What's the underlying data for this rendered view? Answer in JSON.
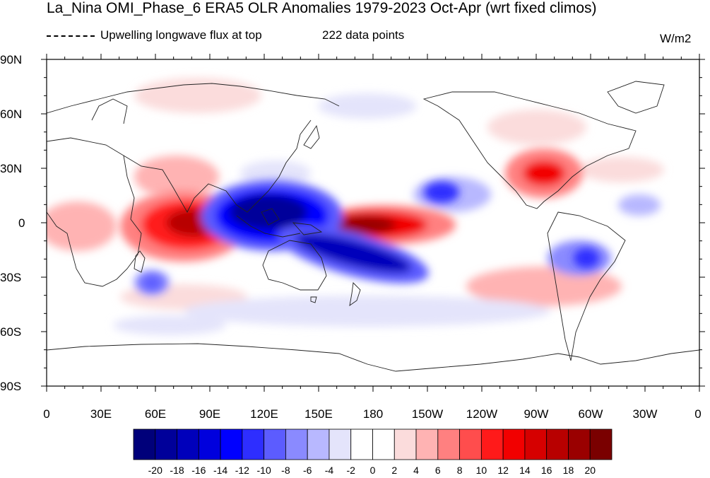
{
  "title": "La_Nina OMI_Phase_6 ERA5 OLR Anomalies 1979-2023 Oct-Apr (wrt fixed climos)",
  "legend_text": "Upwelling longwave flux at top",
  "points_text": "222 data points",
  "units": "W/m2",
  "lat_labels": [
    "90N",
    "60N",
    "30N",
    "0",
    "30S",
    "60S",
    "90S"
  ],
  "lon_labels": [
    "0",
    "30E",
    "60E",
    "90E",
    "120E",
    "150E",
    "180",
    "150W",
    "120W",
    "90W",
    "60W",
    "30W",
    "0"
  ],
  "colorbar": {
    "labels": [
      "-20",
      "-18",
      "-16",
      "-14",
      "-12",
      "-10",
      "-8",
      "-6",
      "-4",
      "-2",
      "0",
      "2",
      "4",
      "6",
      "8",
      "10",
      "12",
      "14",
      "16",
      "18",
      "20"
    ],
    "colors": [
      "#00007a",
      "#00009a",
      "#0000bb",
      "#0000dd",
      "#0000ff",
      "#2e2eff",
      "#5c5cff",
      "#8a8aff",
      "#b8b8ff",
      "#e4e4fb",
      "#ffffff",
      "#ffffff",
      "#fbdcdc",
      "#ffb3b3",
      "#ff8080",
      "#ff4d4d",
      "#ff1a1a",
      "#f20000",
      "#d60000",
      "#b80000",
      "#9a0000",
      "#7a0000"
    ]
  },
  "chart_data": {
    "type": "heatmap",
    "variable": "OLR anomaly",
    "units": "W/m2",
    "x_range": [
      0,
      360
    ],
    "y_range": [
      -90,
      90
    ],
    "levels": [
      -20,
      -18,
      -16,
      -14,
      -12,
      -10,
      -8,
      -6,
      -4,
      -2,
      0,
      2,
      4,
      6,
      8,
      10,
      12,
      14,
      16,
      18,
      20
    ],
    "anomaly_centers": [
      {
        "lon": 80,
        "lat": 0,
        "value": 22
      },
      {
        "lon": 65,
        "lat": -8,
        "value": 18
      },
      {
        "lon": 90,
        "lat": 20,
        "value": 10
      },
      {
        "lon": 175,
        "lat": -2,
        "value": 24
      },
      {
        "lon": 200,
        "lat": 0,
        "value": 16
      },
      {
        "lon": 260,
        "lat": 27,
        "value": 12
      },
      {
        "lon": 290,
        "lat": -35,
        "value": 10
      },
      {
        "lon": 20,
        "lat": -5,
        "value": 6
      },
      {
        "lon": 120,
        "lat": 10,
        "value": -24
      },
      {
        "lon": 140,
        "lat": 5,
        "value": -20
      },
      {
        "lon": 130,
        "lat": -10,
        "value": -18
      },
      {
        "lon": 180,
        "lat": -20,
        "value": -16
      },
      {
        "lon": 200,
        "lat": -27,
        "value": -12
      },
      {
        "lon": 220,
        "lat": 15,
        "value": -14
      },
      {
        "lon": 60,
        "lat": -32,
        "value": -10
      },
      {
        "lon": 305,
        "lat": -18,
        "value": -10
      },
      {
        "lon": 330,
        "lat": 10,
        "value": -6
      }
    ]
  }
}
